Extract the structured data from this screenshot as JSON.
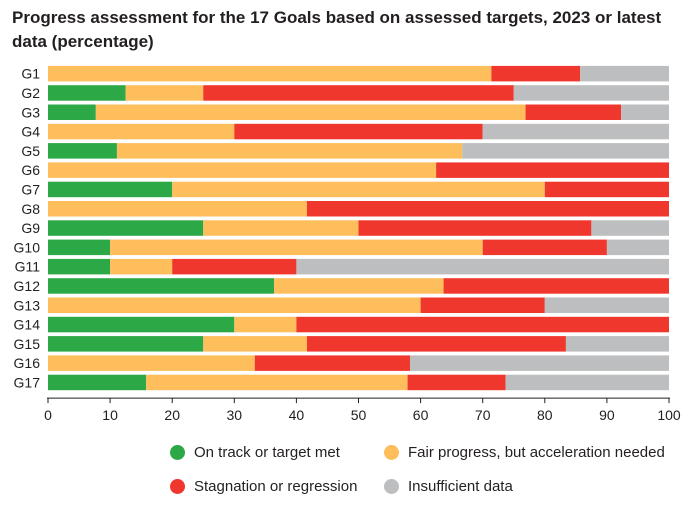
{
  "chart_data": {
    "type": "bar",
    "orientation": "horizontal",
    "stacked": true,
    "title": "Progress assessment for the 17 Goals based on assessed targets, 2023 or latest data (percentage)",
    "xlabel": "",
    "ylabel": "",
    "xlim": [
      0,
      100
    ],
    "xticks": [
      0,
      10,
      20,
      30,
      40,
      50,
      60,
      70,
      80,
      90,
      100
    ],
    "categories": [
      "G1",
      "G2",
      "G3",
      "G4",
      "G5",
      "G6",
      "G7",
      "G8",
      "G9",
      "G10",
      "G11",
      "G12",
      "G13",
      "G14",
      "G15",
      "G16",
      "G17"
    ],
    "series": [
      {
        "name": "On track or target met",
        "color": "#2ca847",
        "values": [
          0,
          12.5,
          7.7,
          0,
          11.1,
          0,
          20,
          0,
          25,
          10,
          10,
          36.4,
          0,
          30,
          25,
          0,
          15.8
        ]
      },
      {
        "name": "Fair progress, but acceleration needed",
        "color": "#fdbe5b",
        "values": [
          71.4,
          12.5,
          69.2,
          30,
          55.6,
          62.5,
          60,
          41.7,
          25,
          60,
          10,
          27.3,
          60,
          10,
          16.7,
          33.3,
          42.1
        ]
      },
      {
        "name": "Stagnation or regression",
        "color": "#f0372e",
        "values": [
          14.3,
          50,
          15.4,
          40,
          0,
          37.5,
          20,
          58.3,
          37.5,
          20,
          20,
          36.3,
          20,
          60,
          41.7,
          25,
          15.8
        ]
      },
      {
        "name": "Insufficient data",
        "color": "#bcbec0",
        "values": [
          14.3,
          25,
          7.7,
          30,
          33.3,
          0,
          0,
          0,
          12.5,
          10,
          60,
          0,
          20,
          0,
          16.6,
          41.7,
          26.3
        ]
      }
    ],
    "grid": false,
    "legend": "bottom"
  }
}
